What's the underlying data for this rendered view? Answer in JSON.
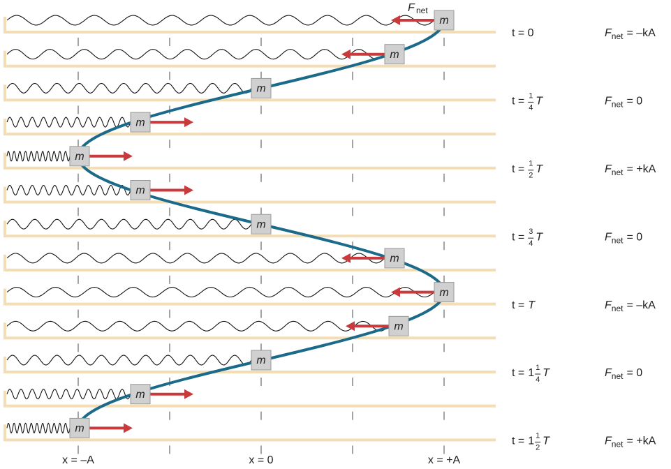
{
  "annotation": {
    "symbol": "F",
    "subscript": "net"
  },
  "masses": [
    "m",
    "m",
    "m",
    "m",
    "m",
    "m",
    "m",
    "m",
    "m",
    "m",
    "m",
    "m",
    "m"
  ],
  "times": [
    {
      "lead": "t = 0"
    },
    {
      "lead": "t =",
      "num": "1",
      "den": "4",
      "unit": "T"
    },
    {
      "lead": "t =",
      "num": "1",
      "den": "2",
      "unit": "T"
    },
    {
      "lead": "t =",
      "num": "3",
      "den": "4",
      "unit": "T"
    },
    {
      "lead": "t =",
      "unit": "T"
    },
    {
      "lead": "t =",
      "whole": "1",
      "num": "1",
      "den": "4",
      "unit": "T"
    },
    {
      "lead": "t =",
      "whole": "1",
      "num": "1",
      "den": "2",
      "unit": "T"
    }
  ],
  "forces": [
    {
      "symbol": "F",
      "subscript": "net",
      "rest": "= –kA"
    },
    {
      "symbol": "F",
      "subscript": "net",
      "rest": "= 0"
    },
    {
      "symbol": "F",
      "subscript": "net",
      "rest": "= +kA"
    },
    {
      "symbol": "F",
      "subscript": "net",
      "rest": "= 0"
    },
    {
      "symbol": "F",
      "subscript": "net",
      "rest": "= –kA"
    },
    {
      "symbol": "F",
      "subscript": "net",
      "rest": "= 0"
    },
    {
      "symbol": "F",
      "subscript": "net",
      "rest": "= +kA"
    }
  ],
  "positions": [
    "x = –A",
    "x = 0",
    "x = +A"
  ]
}
